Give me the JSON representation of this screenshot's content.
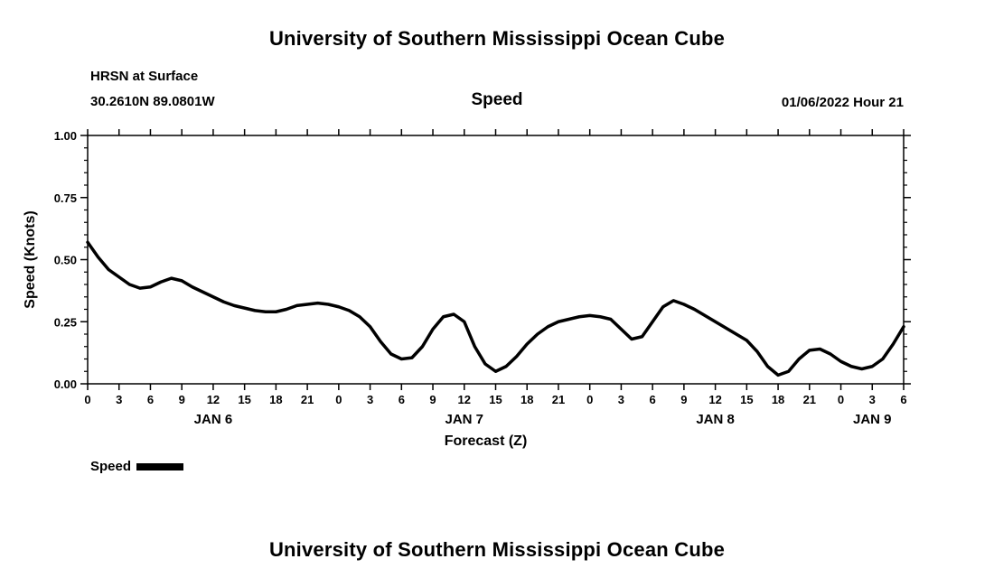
{
  "header": {
    "title": "University of Southern Mississippi Ocean Cube",
    "station_line": "HRSN at Surface",
    "coords_line": "30.2610N  89.0801W",
    "variable_label": "Speed",
    "datetime_label": "01/06/2022  Hour 21"
  },
  "footer": {
    "title": "University of Southern Mississippi Ocean Cube"
  },
  "legend": {
    "label": "Speed",
    "color": "#000000"
  },
  "chart_data": {
    "type": "line",
    "title": "Speed",
    "xlabel": "Forecast (Z)",
    "ylabel": "Speed (Knots)",
    "ylim": [
      0.0,
      1.0
    ],
    "grid": false,
    "legend_position": "bottom-left",
    "line_color": "#000000",
    "yticks": {
      "values": [
        0.0,
        0.25,
        0.5,
        0.75,
        1.0
      ],
      "labels": [
        "0.00",
        "0.25",
        "0.50",
        "0.75",
        "1.00"
      ],
      "minor_step": 0.05
    },
    "x_hours_range": [
      0,
      78
    ],
    "x_ticks": {
      "hours": [
        0,
        3,
        6,
        9,
        12,
        15,
        18,
        21,
        24,
        27,
        30,
        33,
        36,
        39,
        42,
        45,
        48,
        51,
        54,
        57,
        60,
        63,
        66,
        69,
        72,
        75,
        78
      ],
      "labels": [
        "0",
        "3",
        "6",
        "9",
        "12",
        "15",
        "18",
        "21",
        "0",
        "3",
        "6",
        "9",
        "12",
        "15",
        "18",
        "21",
        "0",
        "3",
        "6",
        "9",
        "12",
        "15",
        "18",
        "21",
        "0",
        "3",
        "6"
      ]
    },
    "day_labels": [
      {
        "label": "JAN 6",
        "center_hour": 12
      },
      {
        "label": "JAN 7",
        "center_hour": 36
      },
      {
        "label": "JAN 8",
        "center_hour": 60
      },
      {
        "label": "JAN 9",
        "center_hour": 75
      }
    ],
    "series": [
      {
        "name": "Speed",
        "x": [
          0,
          1,
          2,
          3,
          4,
          5,
          6,
          7,
          8,
          9,
          10,
          11,
          12,
          13,
          14,
          15,
          16,
          17,
          18,
          19,
          20,
          21,
          22,
          23,
          24,
          25,
          26,
          27,
          28,
          29,
          30,
          31,
          32,
          33,
          34,
          35,
          36,
          37,
          38,
          39,
          40,
          41,
          42,
          43,
          44,
          45,
          46,
          47,
          48,
          49,
          50,
          51,
          52,
          53,
          54,
          55,
          56,
          57,
          58,
          59,
          60,
          61,
          62,
          63,
          64,
          65,
          66,
          67,
          68,
          69,
          70,
          71,
          72,
          73,
          74,
          75,
          76,
          77,
          78
        ],
        "y": [
          0.57,
          0.51,
          0.46,
          0.43,
          0.4,
          0.385,
          0.39,
          0.41,
          0.425,
          0.415,
          0.39,
          0.37,
          0.35,
          0.33,
          0.315,
          0.305,
          0.295,
          0.29,
          0.29,
          0.3,
          0.315,
          0.32,
          0.325,
          0.32,
          0.31,
          0.295,
          0.27,
          0.23,
          0.17,
          0.12,
          0.1,
          0.105,
          0.15,
          0.22,
          0.27,
          0.28,
          0.25,
          0.15,
          0.08,
          0.05,
          0.07,
          0.11,
          0.16,
          0.2,
          0.23,
          0.25,
          0.26,
          0.27,
          0.275,
          0.27,
          0.26,
          0.22,
          0.18,
          0.19,
          0.25,
          0.31,
          0.335,
          0.32,
          0.3,
          0.275,
          0.25,
          0.225,
          0.2,
          0.175,
          0.13,
          0.07,
          0.035,
          0.05,
          0.1,
          0.135,
          0.14,
          0.12,
          0.09,
          0.07,
          0.06,
          0.07,
          0.1,
          0.16,
          0.23
        ]
      }
    ]
  }
}
